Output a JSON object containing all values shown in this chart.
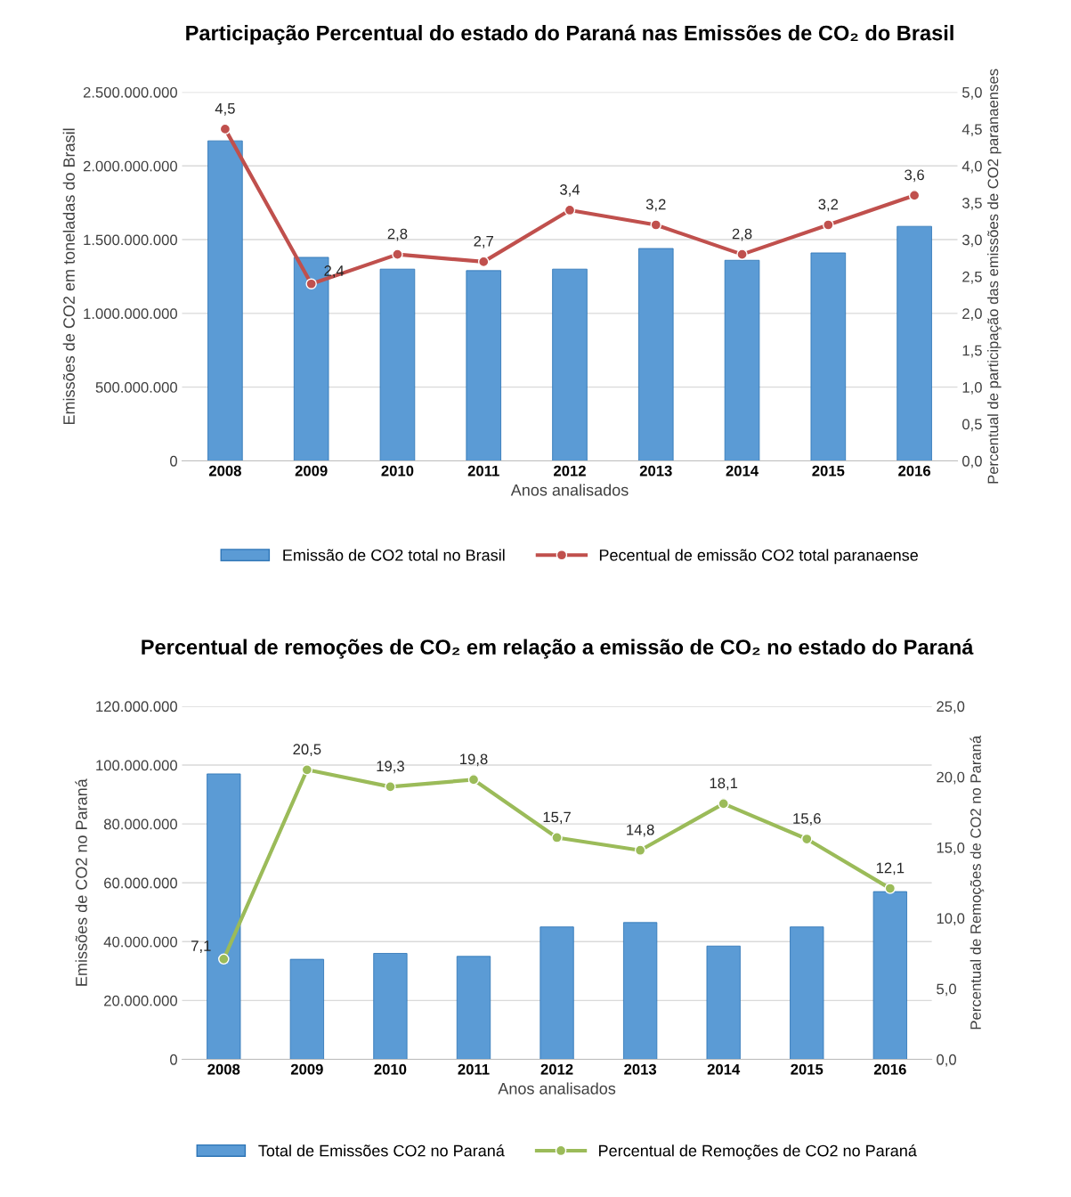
{
  "chart_data": [
    {
      "type": "bar",
      "title": "Participação Percentual do estado do Paraná nas Emissões de CO₂ do Brasil",
      "xlabel": "Anos analisados",
      "ylabel": "Emissões de CO2 em toneladas do Brasil",
      "y2label": "Percentual de participação das emissões de CO2 paranaenses",
      "categories": [
        "2008",
        "2009",
        "2010",
        "2011",
        "2012",
        "2013",
        "2014",
        "2015",
        "2016"
      ],
      "series": [
        {
          "name": "Emissão de CO2 total no Brasil",
          "color": "#5b9bd5",
          "values": [
            2170000000,
            1380000000,
            1300000000,
            1290000000,
            1300000000,
            1440000000,
            1360000000,
            1410000000,
            1590000000
          ]
        },
        {
          "name": "Pecentual de emissão CO2 total paranaense",
          "type": "line",
          "axis": "y2",
          "color": "#c0504d",
          "marker": "circle",
          "values": [
            4.5,
            2.4,
            2.8,
            2.7,
            3.4,
            3.2,
            2.8,
            3.2,
            3.6
          ],
          "value_labels": [
            "4,5",
            "2,4",
            "2,8",
            "2,7",
            "3,4",
            "3,2",
            "2,8",
            "3,2",
            "3,6"
          ]
        }
      ],
      "ylim": [
        0,
        2500000000
      ],
      "yticks": [
        {
          "value": 0,
          "label": "0"
        },
        {
          "value": 500000000,
          "label": "500.000.000"
        },
        {
          "value": 1000000000,
          "label": "1.000.000.000"
        },
        {
          "value": 1500000000,
          "label": "1.500.000.000"
        },
        {
          "value": 2000000000,
          "label": "2.000.000.000"
        },
        {
          "value": 2500000000,
          "label": "2.500.000.000"
        }
      ],
      "y2lim": [
        0,
        5
      ],
      "y2ticks": [
        {
          "value": 0,
          "label": "0,0"
        },
        {
          "value": 0.5,
          "label": "0,5"
        },
        {
          "value": 1,
          "label": "1,0"
        },
        {
          "value": 1.5,
          "label": "1,5"
        },
        {
          "value": 2,
          "label": "2,0"
        },
        {
          "value": 2.5,
          "label": "2,5"
        },
        {
          "value": 3,
          "label": "3,0"
        },
        {
          "value": 3.5,
          "label": "3,5"
        },
        {
          "value": 4,
          "label": "4,0"
        },
        {
          "value": 4.5,
          "label": "4,5"
        },
        {
          "value": 5,
          "label": "5,0"
        }
      ],
      "grid": "y",
      "legend": "bottom"
    },
    {
      "type": "bar",
      "title": "Percentual de remoções de CO₂ em relação a emissão de CO₂ no estado do Paraná",
      "xlabel": "Anos analisados",
      "ylabel": "Emissões de CO2 no Paraná",
      "y2label": "Percentual de Remoções de CO2 no Paraná",
      "categories": [
        "2008",
        "2009",
        "2010",
        "2011",
        "2012",
        "2013",
        "2014",
        "2015",
        "2016"
      ],
      "series": [
        {
          "name": "Total de Emissões CO2 no Paraná",
          "color": "#5b9bd5",
          "values": [
            97000000,
            34000000,
            36000000,
            35000000,
            45000000,
            46500000,
            38500000,
            45000000,
            57000000
          ]
        },
        {
          "name": "Percentual de Remoções de CO2 no Paraná",
          "type": "line",
          "axis": "y2",
          "color": "#9bbb59",
          "marker": "circle",
          "values": [
            7.1,
            20.5,
            19.3,
            19.8,
            15.7,
            14.8,
            18.1,
            15.6,
            12.1
          ],
          "value_labels": [
            "7,1",
            "20,5",
            "19,3",
            "19,8",
            "15,7",
            "14,8",
            "18,1",
            "15,6",
            "12,1"
          ]
        }
      ],
      "ylim": [
        0,
        120000000
      ],
      "yticks": [
        {
          "value": 0,
          "label": "0"
        },
        {
          "value": 20000000,
          "label": "20.000.000"
        },
        {
          "value": 40000000,
          "label": "40.000.000"
        },
        {
          "value": 60000000,
          "label": "60.000.000"
        },
        {
          "value": 80000000,
          "label": "80.000.000"
        },
        {
          "value": 100000000,
          "label": "100.000.000"
        },
        {
          "value": 120000000,
          "label": "120.000.000"
        }
      ],
      "y2lim": [
        0,
        25
      ],
      "y2ticks": [
        {
          "value": 0,
          "label": "0,0"
        },
        {
          "value": 5,
          "label": "5,0"
        },
        {
          "value": 10,
          "label": "10,0"
        },
        {
          "value": 15,
          "label": "15,0"
        },
        {
          "value": 20,
          "label": "20,0"
        },
        {
          "value": 25,
          "label": "25,0"
        }
      ],
      "grid": "y",
      "legend": "bottom"
    }
  ]
}
